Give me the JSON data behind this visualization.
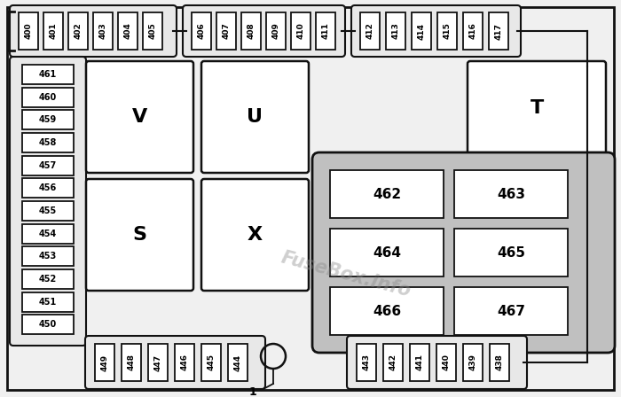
{
  "bg_color": "#f0f0f0",
  "outline_color": "#111111",
  "fuse_fill": "#ffffff",
  "gray_group_fill": "#c0c0c0",
  "watermark": "FuseBox.info",
  "top_row1": [
    400,
    401,
    402,
    403,
    404,
    405
  ],
  "top_row2": [
    406,
    407,
    408,
    409,
    410,
    411
  ],
  "top_row3": [
    412,
    413,
    414,
    415,
    416,
    417
  ],
  "left_col": [
    461,
    460,
    459,
    458,
    457,
    456,
    455,
    454,
    453,
    452,
    451,
    450
  ],
  "bot_row1": [
    449,
    448,
    447,
    446,
    445,
    444
  ],
  "bot_row2": [
    443,
    442,
    441,
    440,
    439,
    438
  ],
  "relay_labels": [
    "V",
    "U",
    "S",
    "X",
    "T"
  ],
  "relay_grid": [
    462,
    463,
    464,
    465,
    466,
    467
  ]
}
